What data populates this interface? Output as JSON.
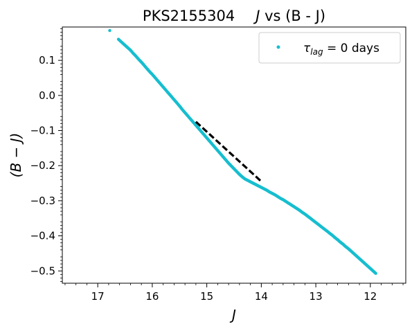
{
  "chart_data": {
    "type": "scatter",
    "title": {
      "prefix": "PKS2155304",
      "var": "J",
      "suffix": " vs (B - J)"
    },
    "xlabel": "J",
    "ylabel": "(B − J)",
    "xlim": [
      17.65,
      11.35
    ],
    "ylim": [
      -0.535,
      0.195
    ],
    "x_invert": true,
    "xticks": [
      17,
      16,
      15,
      14,
      13,
      12
    ],
    "xtick_labels": [
      "17",
      "16",
      "15",
      "14",
      "13",
      "12"
    ],
    "yticks": [
      0.1,
      0.0,
      -0.1,
      -0.2,
      -0.3,
      -0.4,
      -0.5
    ],
    "ytick_labels": [
      "0.1",
      "0.0",
      "−0.1",
      "−0.2",
      "−0.3",
      "−0.4",
      "−0.5"
    ],
    "legend": {
      "position": "top-right",
      "tau_label": "τ",
      "tau_sub": "lag",
      "tau_value": " = 0  days"
    },
    "colors": {
      "points": "#17becf",
      "fit_line": "#000000"
    },
    "series": [
      {
        "kind": "points",
        "x": [
          16.78,
          16.62,
          16.55,
          16.5,
          16.45,
          16.4,
          16.35,
          16.3,
          16.25,
          16.2,
          16.15,
          16.1,
          16.05,
          16.0,
          15.95,
          15.9,
          15.85,
          15.8,
          15.75,
          15.7,
          15.65,
          15.6,
          15.55,
          15.5,
          15.45,
          15.4,
          15.35,
          15.3,
          15.25,
          15.2,
          15.15,
          15.1,
          15.05,
          15.0,
          14.95,
          14.9,
          14.85,
          14.8,
          14.75,
          14.7,
          14.65,
          14.6,
          14.55,
          14.5,
          14.45,
          14.4,
          14.35,
          14.3,
          14.25,
          14.2,
          14.15,
          14.1,
          14.05,
          14.0,
          13.95,
          13.9,
          13.85,
          13.8,
          13.75,
          13.7,
          13.65,
          13.6,
          13.55,
          13.5,
          13.45,
          13.4,
          13.35,
          13.3,
          13.25,
          13.2,
          13.15,
          13.1,
          13.05,
          13.0,
          12.95,
          12.9,
          12.85,
          12.8,
          12.75,
          12.7,
          12.65,
          12.6,
          12.55,
          12.5,
          12.45,
          12.4,
          12.35,
          12.3,
          12.25,
          12.2,
          12.15,
          12.1,
          12.05,
          12.0,
          11.95,
          11.9
        ],
        "y": [
          0.185,
          0.16,
          0.15,
          0.143,
          0.136,
          0.129,
          0.12,
          0.112,
          0.103,
          0.095,
          0.086,
          0.077,
          0.068,
          0.06,
          0.051,
          0.042,
          0.033,
          0.024,
          0.015,
          0.006,
          -0.003,
          -0.012,
          -0.021,
          -0.03,
          -0.04,
          -0.049,
          -0.058,
          -0.067,
          -0.076,
          -0.085,
          -0.094,
          -0.103,
          -0.112,
          -0.121,
          -0.13,
          -0.139,
          -0.148,
          -0.157,
          -0.166,
          -0.175,
          -0.184,
          -0.193,
          -0.201,
          -0.209,
          -0.217,
          -0.225,
          -0.232,
          -0.238,
          -0.242,
          -0.246,
          -0.25,
          -0.254,
          -0.258,
          -0.262,
          -0.266,
          -0.27,
          -0.275,
          -0.279,
          -0.283,
          -0.288,
          -0.293,
          -0.297,
          -0.302,
          -0.307,
          -0.312,
          -0.317,
          -0.322,
          -0.327,
          -0.333,
          -0.338,
          -0.344,
          -0.35,
          -0.356,
          -0.362,
          -0.368,
          -0.374,
          -0.38,
          -0.386,
          -0.392,
          -0.398,
          -0.405,
          -0.411,
          -0.418,
          -0.424,
          -0.431,
          -0.437,
          -0.444,
          -0.451,
          -0.458,
          -0.465,
          -0.472,
          -0.479,
          -0.486,
          -0.493,
          -0.5,
          -0.507
        ]
      },
      {
        "kind": "fit-line",
        "x": [
          15.2,
          14.0
        ],
        "y": [
          -0.075,
          -0.245
        ]
      }
    ]
  }
}
